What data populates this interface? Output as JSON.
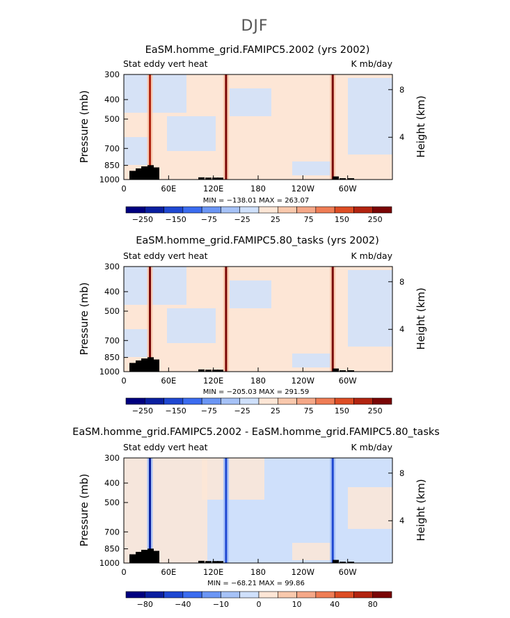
{
  "figure": {
    "title": "DJF",
    "colors": {
      "palette": [
        "#00007f",
        "#0a1fa0",
        "#1f48d2",
        "#3b6cf0",
        "#6b96f5",
        "#a6c2f7",
        "#cfe0fb",
        "#fde6d6",
        "#f9c9ad",
        "#f5a888",
        "#ef7d55",
        "#dd4d24",
        "#b22410",
        "#7a0505"
      ]
    }
  },
  "chart_data": [
    {
      "type": "heatmap",
      "title": "EaSM.homme_grid.FAMIPC5.2002 (yrs 2002)",
      "left_label": "Stat eddy vert heat",
      "right_label": "K mb/day",
      "ylabel": "Pressure (mb)",
      "y2label": "Height (km)",
      "x_ticks": [
        "0",
        "60E",
        "120E",
        "180",
        "120W",
        "60W"
      ],
      "y_ticks": [
        "300",
        "400",
        "500",
        "700",
        "850",
        "1000"
      ],
      "y2_ticks": [
        "8",
        "4"
      ],
      "minmax": "MIN = −138.01   MAX = 263.07",
      "colorbar_labels": [
        "−250",
        "−150",
        "−75",
        "−25",
        "25",
        "75",
        "150",
        "250"
      ],
      "min": -138.01,
      "max": 263.07,
      "xlim": [
        0,
        360
      ],
      "ylim": [
        1000,
        300
      ],
      "y_scale": "log",
      "levels": [
        -300,
        -250,
        -200,
        -150,
        -100,
        -75,
        -50,
        -25,
        25,
        50,
        75,
        100,
        150,
        200,
        250
      ],
      "features": [
        {
          "lon": 35,
          "value": 200
        },
        {
          "lon": 137,
          "value": 230
        },
        {
          "lon": 280,
          "value": 263
        }
      ]
    },
    {
      "type": "heatmap",
      "title": "EaSM.homme_grid.FAMIPC5.80_tasks (yrs 2002)",
      "left_label": "Stat eddy vert heat",
      "right_label": "K mb/day",
      "ylabel": "Pressure (mb)",
      "y2label": "Height (km)",
      "x_ticks": [
        "0",
        "60E",
        "120E",
        "180",
        "120W",
        "60W"
      ],
      "y_ticks": [
        "300",
        "400",
        "500",
        "700",
        "850",
        "1000"
      ],
      "y2_ticks": [
        "8",
        "4"
      ],
      "minmax": "MIN = −205.03   MAX = 291.59",
      "colorbar_labels": [
        "−250",
        "−150",
        "−75",
        "−25",
        "25",
        "75",
        "150",
        "250"
      ],
      "min": -205.03,
      "max": 291.59,
      "xlim": [
        0,
        360
      ],
      "ylim": [
        1000,
        300
      ],
      "y_scale": "log",
      "levels": [
        -300,
        -250,
        -200,
        -150,
        -100,
        -75,
        -50,
        -25,
        25,
        50,
        75,
        100,
        150,
        200,
        250
      ],
      "features": [
        {
          "lon": 35,
          "value": 240
        },
        {
          "lon": 137,
          "value": 291
        },
        {
          "lon": 280,
          "value": 250
        }
      ]
    },
    {
      "type": "heatmap",
      "title": "EaSM.homme_grid.FAMIPC5.2002 - EaSM.homme_grid.FAMIPC5.80_tasks",
      "left_label": "Stat eddy vert heat",
      "right_label": "K mb/day",
      "ylabel": "Pressure (mb)",
      "y2label": "Height (km)",
      "x_ticks": [
        "0",
        "60E",
        "120E",
        "180",
        "120W",
        "60W"
      ],
      "y_ticks": [
        "300",
        "400",
        "500",
        "700",
        "850",
        "1000"
      ],
      "y2_ticks": [
        "8",
        "4"
      ],
      "minmax": "MIN = −68.21   MAX =   99.86",
      "colorbar_labels": [
        "−80",
        "−40",
        "−10",
        "0",
        "10",
        "40",
        "80"
      ],
      "min": -68.21,
      "max": 99.86,
      "xlim": [
        0,
        360
      ],
      "ylim": [
        1000,
        300
      ],
      "y_scale": "log",
      "levels": [
        -100,
        -80,
        -60,
        -40,
        -20,
        -10,
        -5,
        0,
        5,
        10,
        20,
        40,
        60,
        80,
        100
      ],
      "features": [
        {
          "lon": 35,
          "value": -60
        },
        {
          "lon": 137,
          "value": -55
        },
        {
          "lon": 280,
          "value": -50
        }
      ]
    }
  ]
}
